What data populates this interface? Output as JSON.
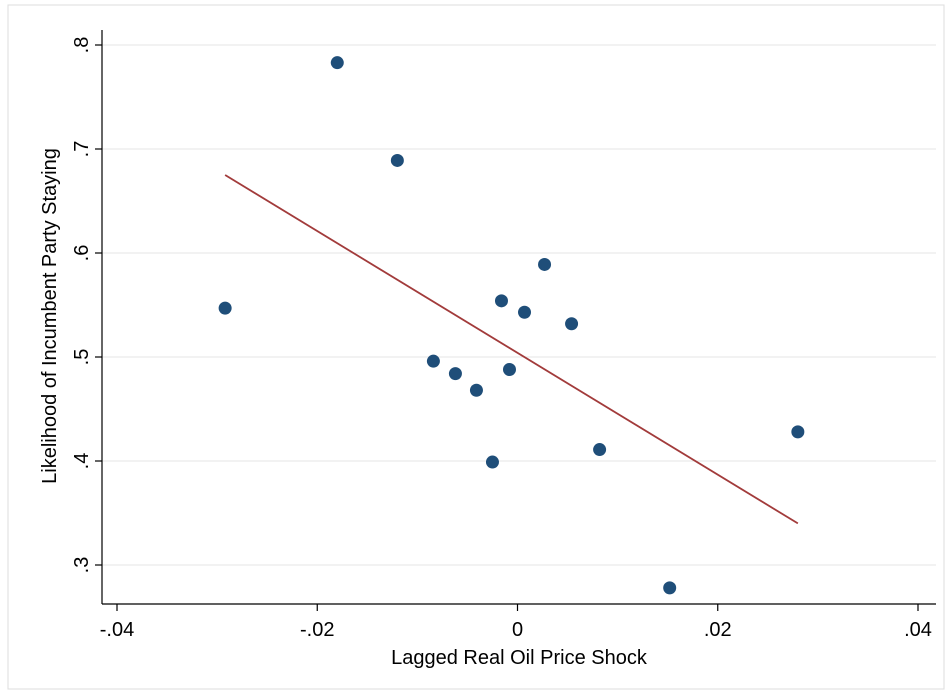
{
  "chart_data": {
    "type": "scatter",
    "xlabel": "Lagged Real Oil Price Shock",
    "ylabel": "Likelihood of Incumbent Party Staying",
    "xlim": [
      -0.04,
      0.04
    ],
    "ylim": [
      0.3,
      0.8
    ],
    "x_ticks": [
      {
        "value": -0.04,
        "label": "-.04"
      },
      {
        "value": -0.02,
        "label": "-.02"
      },
      {
        "value": 0,
        "label": "0"
      },
      {
        "value": 0.02,
        "label": ".02"
      },
      {
        "value": 0.04,
        "label": ".04"
      }
    ],
    "y_ticks": [
      {
        "value": 0.3,
        "label": ".3"
      },
      {
        "value": 0.4,
        "label": ".4"
      },
      {
        "value": 0.5,
        "label": ".5"
      },
      {
        "value": 0.6,
        "label": ".6"
      },
      {
        "value": 0.7,
        "label": ".7"
      },
      {
        "value": 0.8,
        "label": ".8"
      }
    ],
    "grid": "horizontal",
    "points": [
      {
        "x": -0.0292,
        "y": 0.547
      },
      {
        "x": -0.018,
        "y": 0.783
      },
      {
        "x": -0.012,
        "y": 0.689
      },
      {
        "x": -0.0084,
        "y": 0.496
      },
      {
        "x": -0.0062,
        "y": 0.484
      },
      {
        "x": -0.0041,
        "y": 0.468
      },
      {
        "x": -0.0025,
        "y": 0.399
      },
      {
        "x": -0.0016,
        "y": 0.554
      },
      {
        "x": -0.0008,
        "y": 0.488
      },
      {
        "x": 0.0007,
        "y": 0.543
      },
      {
        "x": 0.0027,
        "y": 0.589
      },
      {
        "x": 0.0054,
        "y": 0.532
      },
      {
        "x": 0.0082,
        "y": 0.411
      },
      {
        "x": 0.0152,
        "y": 0.278
      },
      {
        "x": 0.028,
        "y": 0.428
      }
    ],
    "fit_line": {
      "x": [
        -0.0292,
        0.028
      ],
      "y": [
        0.675,
        0.34
      ]
    },
    "colors": {
      "marker": "#1f4e79",
      "fit_line": "#a23b3b",
      "grid": "#e6e6e6",
      "axis": "#000000",
      "frame": "#dddddd"
    }
  }
}
